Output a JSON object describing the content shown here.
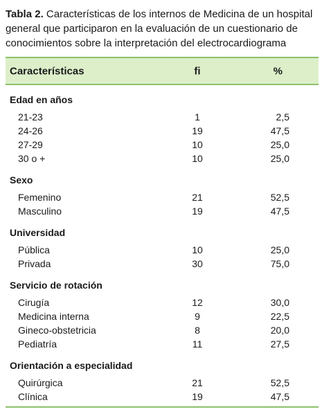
{
  "caption": {
    "label": "Tabla 2.",
    "lines": [
      "Características de los internos de Medicina de un hospital",
      "general que participaron en la evaluación de un cuestionario de",
      "conocimientos sobre la interpretación del electrocardiograma"
    ]
  },
  "table": {
    "header": [
      "Características",
      "fi",
      "%"
    ],
    "groups": [
      {
        "title": "Edad en años",
        "rows": [
          [
            "21-23",
            "1",
            "2,5"
          ],
          [
            "24-26",
            "19",
            "47,5"
          ],
          [
            "27-29",
            "10",
            "25,0"
          ],
          [
            "30 o +",
            "10",
            "25,0"
          ]
        ]
      },
      {
        "title": "Sexo",
        "rows": [
          [
            "Femenino",
            "21",
            "52,5"
          ],
          [
            "Masculino",
            "19",
            "47,5"
          ]
        ]
      },
      {
        "title": "Universidad",
        "rows": [
          [
            "Pública",
            "10",
            "25,0"
          ],
          [
            "Privada",
            "30",
            "75,0"
          ]
        ]
      },
      {
        "title": "Servicio de rotación",
        "rows": [
          [
            "Cirugía",
            "12",
            "30,0"
          ],
          [
            "Medicina interna",
            "9",
            "22,5"
          ],
          [
            "Gineco-obstetricia",
            "8",
            "20,0"
          ],
          [
            "Pediatría",
            "11",
            "27,5"
          ]
        ]
      },
      {
        "title": "Orientación a especialidad",
        "rows": [
          [
            "Quirúrgica",
            "21",
            "52,5"
          ],
          [
            "Clínica",
            "19",
            "47,5"
          ]
        ]
      }
    ]
  }
}
